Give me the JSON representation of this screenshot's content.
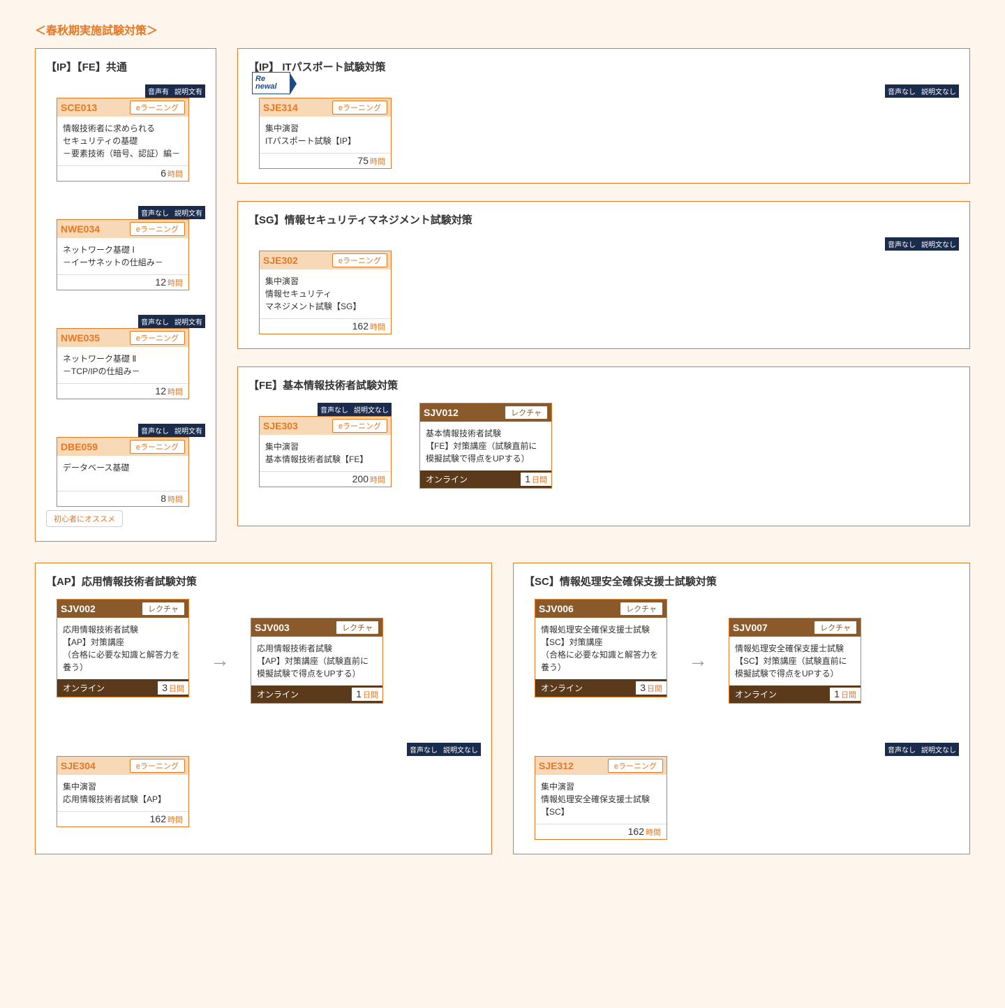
{
  "page_title": "＜春秋期実施試験対策＞",
  "label_hours": "時間",
  "label_days": "日間",
  "label_online": "オンライン",
  "label_elearning": "eラーニング",
  "label_lecture": "レクチャ",
  "rec_beginner": "初心者にオススメ",
  "renewal": {
    "line1": "Re",
    "line2": "newal"
  },
  "sections": {
    "common": {
      "title": "【IP】【FE】共通",
      "cards": [
        {
          "badges": [
            "音声有",
            "説明文有"
          ],
          "code": "SCE013",
          "type": "eラーニング",
          "body": "情報技術者に求められる\nセキュリティの基礎\n－要素技術（暗号、認証）編－",
          "hours": "6"
        },
        {
          "badges": [
            "音声なし",
            "説明文有"
          ],
          "code": "NWE034",
          "type": "eラーニング",
          "body": "ネットワーク基礎 Ⅰ\n－イーサネットの仕組み－",
          "hours": "12"
        },
        {
          "badges": [
            "音声なし",
            "説明文有"
          ],
          "code": "NWE035",
          "type": "eラーニング",
          "body": "ネットワーク基礎 Ⅱ\n－TCP/IPの仕組み－",
          "hours": "12"
        },
        {
          "badges": [
            "音声なし",
            "説明文有"
          ],
          "code": "DBE059",
          "type": "eラーニング",
          "body": "データベース基礎",
          "hours": "8"
        }
      ]
    },
    "ip": {
      "title": "【IP】 ITパスポート試験対策",
      "card": {
        "badges": [
          "音声なし",
          "説明文なし"
        ],
        "code": "SJE314",
        "type": "eラーニング",
        "body": "集中演習\nITパスポート試験【IP】",
        "hours": "75",
        "renewal": true
      }
    },
    "sg": {
      "title": "【SG】情報セキュリティマネジメント試験対策",
      "card": {
        "badges": [
          "音声なし",
          "説明文なし"
        ],
        "code": "SJE302",
        "type": "eラーニング",
        "body": "集中演習\n情報セキュリティ\nマネジメント試験【SG】",
        "hours": "162"
      }
    },
    "fe": {
      "title": "【FE】基本情報技術者試験対策",
      "cards": [
        {
          "badges": [
            "音声なし",
            "説明文なし"
          ],
          "code": "SJE303",
          "type": "eラーニング",
          "body": "集中演習\n基本情報技術者試験【FE】",
          "hours": "200"
        },
        {
          "code": "SJV012",
          "type": "レクチャ",
          "body": "基本情報技術者試験\n【FE】対策講座（試験直前に\n模擬試験で得点をUPする）",
          "mode": "オンライン",
          "days": "1",
          "lecture": true
        }
      ]
    },
    "ap": {
      "title": "【AP】応用情報技術者試験対策",
      "top": [
        {
          "code": "SJV002",
          "type": "レクチャ",
          "body": "応用情報技術者試験\n【AP】対策講座\n（合格に必要な知識と解答力を養う）",
          "mode": "オンライン",
          "days": "3",
          "lecture": true
        },
        {
          "code": "SJV003",
          "type": "レクチャ",
          "body": "応用情報技術者試験\n【AP】対策講座（試験直前に\n模擬試験で得点をUPする）",
          "mode": "オンライン",
          "days": "1",
          "lecture": true
        }
      ],
      "bottom": {
        "badges": [
          "音声なし",
          "説明文なし"
        ],
        "code": "SJE304",
        "type": "eラーニング",
        "body": "集中演習\n応用情報技術者試験【AP】",
        "hours": "162"
      }
    },
    "sc": {
      "title": "【SC】情報処理安全確保支援士試験対策",
      "top": [
        {
          "code": "SJV006",
          "type": "レクチャ",
          "body": "情報処理安全確保支援士試験\n【SC】対策講座\n（合格に必要な知識と解答力を養う）",
          "mode": "オンライン",
          "days": "3",
          "lecture": true
        },
        {
          "code": "SJV007",
          "type": "レクチャ",
          "body": "情報処理安全確保支援士試験\n【SC】対策講座（試験直前に\n模擬試験で得点をUPする）",
          "mode": "オンライン",
          "days": "1",
          "lecture": true
        }
      ],
      "bottom": {
        "badges": [
          "音声なし",
          "説明文なし"
        ],
        "code": "SJE312",
        "type": "eラーニング",
        "body": "集中演習\n情報処理安全確保支援士試験\n【SC】",
        "hours": "162"
      }
    }
  }
}
